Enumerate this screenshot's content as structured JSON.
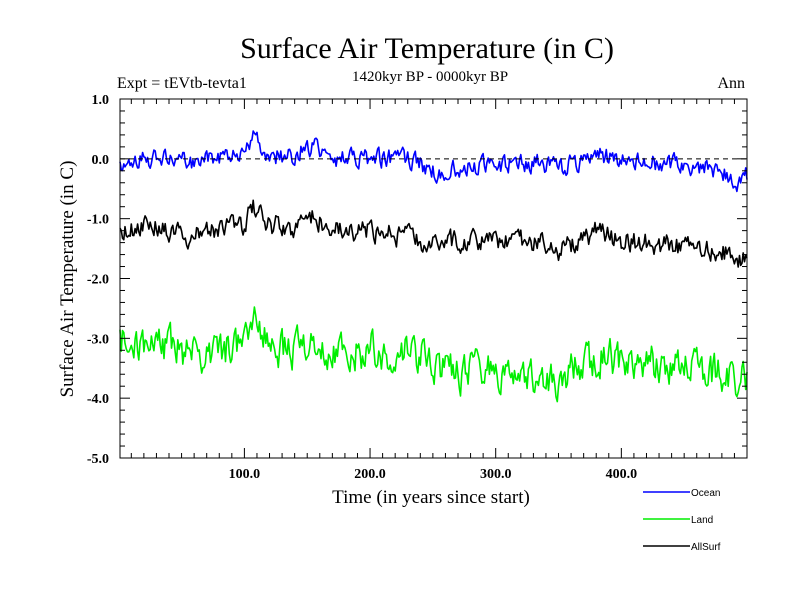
{
  "chart_data": {
    "type": "line",
    "title": "Surface Air Temperature (in C)",
    "subtitle": "1420kyr BP - 0000kyr BP",
    "left_label": "Expt = tEVtb-tevta1",
    "right_label": "Ann",
    "xlabel": "Time (in years since start)",
    "ylabel": "Surface Air Temperature (in C)",
    "xlim": [
      1,
      500
    ],
    "ylim": [
      -5.0,
      1.0
    ],
    "xticks": [
      100,
      200,
      300,
      400
    ],
    "xtick_labels": [
      "100.0",
      "200.0",
      "300.0",
      "400.0"
    ],
    "yticks": [
      1.0,
      0.0,
      -1.0,
      -2.0,
      -3.0,
      -4.0,
      -5.0
    ],
    "ytick_labels": [
      "1.0",
      "0.0",
      "-1.0",
      "-2.0",
      "-3.0",
      "-4.0",
      "-5.0"
    ],
    "reference_line": 0.0,
    "legend_position": "bottom-right, outside plot",
    "series": [
      {
        "name": "Ocean",
        "color": "#0000ff",
        "x": [
          1,
          20,
          40,
          60,
          80,
          100,
          107,
          120,
          140,
          150,
          170,
          200,
          230,
          250,
          270,
          300,
          330,
          350,
          370,
          380,
          400,
          420,
          440,
          460,
          480,
          490,
          500
        ],
        "values": [
          -0.05,
          0.0,
          0.0,
          -0.1,
          0.0,
          0.1,
          0.35,
          0.05,
          0.05,
          0.25,
          0.0,
          0.0,
          0.0,
          -0.2,
          -0.15,
          -0.1,
          -0.05,
          -0.15,
          -0.05,
          0.1,
          -0.05,
          -0.05,
          -0.1,
          -0.15,
          -0.2,
          -0.4,
          -0.3
        ]
      },
      {
        "name": "Land",
        "color": "#00ee00",
        "x": [
          1,
          20,
          40,
          60,
          80,
          100,
          107,
          120,
          140,
          150,
          170,
          200,
          230,
          250,
          270,
          300,
          330,
          350,
          370,
          380,
          400,
          420,
          440,
          460,
          480,
          490,
          500
        ],
        "values": [
          -3.0,
          -3.2,
          -3.1,
          -3.3,
          -3.2,
          -3.1,
          -2.5,
          -3.2,
          -3.2,
          -3.1,
          -3.3,
          -3.2,
          -3.2,
          -3.4,
          -3.6,
          -3.5,
          -3.6,
          -3.7,
          -3.4,
          -3.3,
          -3.4,
          -3.4,
          -3.5,
          -3.5,
          -3.6,
          -3.8,
          -3.7
        ]
      },
      {
        "name": "AllSurf",
        "color": "#000000",
        "x": [
          1,
          20,
          40,
          60,
          80,
          100,
          107,
          120,
          140,
          150,
          170,
          200,
          230,
          250,
          270,
          300,
          330,
          350,
          370,
          380,
          400,
          420,
          440,
          460,
          480,
          490,
          500
        ],
        "values": [
          -1.2,
          -1.1,
          -1.2,
          -1.3,
          -1.2,
          -1.1,
          -0.8,
          -1.1,
          -1.2,
          -0.9,
          -1.2,
          -1.2,
          -1.3,
          -1.4,
          -1.4,
          -1.4,
          -1.4,
          -1.5,
          -1.4,
          -1.2,
          -1.4,
          -1.4,
          -1.45,
          -1.5,
          -1.5,
          -1.7,
          -1.6
        ]
      }
    ]
  }
}
